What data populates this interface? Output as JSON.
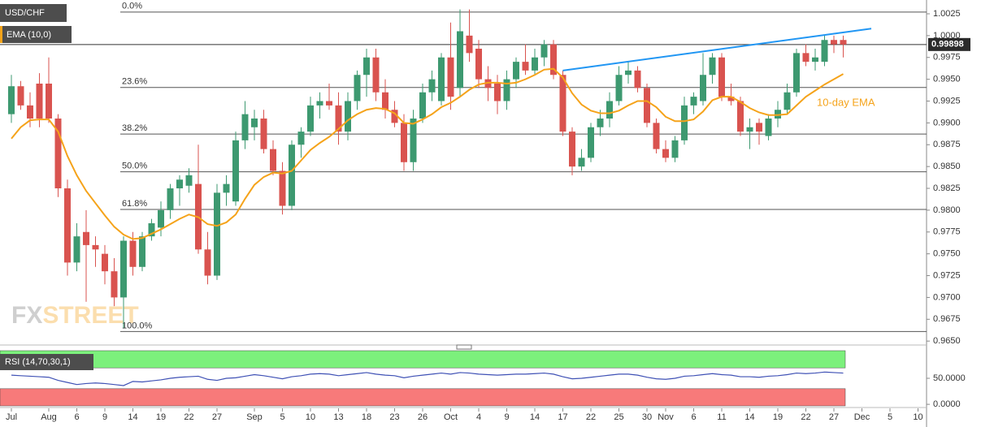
{
  "chart_data": {
    "type": "candlestick",
    "title": "USD/CHF",
    "categories": [
      "Jul",
      null,
      null,
      null,
      "Aug",
      null,
      null,
      "6",
      null,
      null,
      "9",
      null,
      null,
      "14",
      null,
      null,
      "19",
      null,
      null,
      "22",
      null,
      null,
      "27",
      null,
      null,
      null,
      "Sep",
      null,
      null,
      "5",
      null,
      null,
      "10",
      null,
      null,
      "13",
      null,
      null,
      "18",
      null,
      null,
      "23",
      null,
      null,
      "26",
      null,
      null,
      "Oct",
      null,
      null,
      "4",
      null,
      null,
      "9",
      null,
      null,
      "14",
      null,
      null,
      "17",
      null,
      null,
      "22",
      null,
      null,
      "25",
      null,
      null,
      "30",
      null,
      "Nov",
      null,
      null,
      "6",
      null,
      null,
      "11",
      null,
      null,
      "14",
      null,
      null,
      "19",
      null,
      null,
      "22",
      null,
      null,
      "27",
      null,
      null,
      "Dec",
      null,
      null,
      "5",
      null,
      null,
      "10"
    ],
    "series": [
      {
        "name": "USD/CHF",
        "up_color": "#3d9970",
        "down_color": "#d9534f",
        "open": [
          0.991,
          0.9942,
          0.992,
          0.9945,
          0.9945,
          0.9905,
          0.9825,
          0.974,
          0.9775,
          0.976,
          0.975,
          0.973,
          0.97,
          0.9765,
          0.9735,
          0.977,
          0.978,
          0.98,
          0.9825,
          0.9828,
          0.983,
          0.9755,
          0.9725,
          0.982,
          0.981,
          0.988,
          0.9895,
          0.9905,
          0.987,
          0.9845,
          0.9805,
          0.9875,
          0.989,
          0.992,
          0.9925,
          0.992,
          0.989,
          0.9925,
          0.9955,
          0.9975,
          0.9935,
          0.9915,
          0.99,
          0.9855,
          0.9905,
          0.9935,
          0.9925,
          0.9975,
          0.994,
          1.0,
          0.9985,
          0.995,
          0.9945,
          0.9925,
          0.995,
          0.997,
          0.996,
          0.9975,
          0.999,
          0.9955,
          0.989,
          0.985,
          0.986,
          0.9895,
          0.9905,
          0.9925,
          0.9955,
          0.996,
          0.994,
          0.99,
          0.987,
          0.986,
          0.988,
          0.992,
          0.9925,
          0.9955,
          0.9975,
          0.993,
          0.9925,
          0.989,
          0.99,
          0.9885,
          0.9905,
          0.9915,
          0.9935,
          0.998,
          0.997,
          0.997,
          0.9995,
          0.9995
        ],
        "high": [
          0.9955,
          0.9948,
          0.9935,
          0.9957,
          0.9975,
          0.991,
          0.9835,
          0.9785,
          0.98,
          0.977,
          0.976,
          0.9745,
          0.977,
          0.9775,
          0.9775,
          0.979,
          0.981,
          0.983,
          0.984,
          0.9848,
          0.9875,
          0.9775,
          0.983,
          0.984,
          0.989,
          0.9925,
          0.9915,
          0.9915,
          0.988,
          0.9855,
          0.988,
          0.9895,
          0.993,
          0.9935,
          0.9945,
          0.9935,
          0.9935,
          0.996,
          0.9985,
          0.9985,
          0.995,
          0.9925,
          0.991,
          0.9915,
          0.9945,
          0.996,
          0.998,
          1.0015,
          1.003,
          1.003,
          0.9995,
          0.9965,
          0.9955,
          0.996,
          0.9975,
          0.999,
          0.9985,
          0.9995,
          0.9995,
          0.996,
          0.9895,
          0.987,
          0.99,
          0.9915,
          0.9935,
          0.9965,
          0.997,
          0.9965,
          0.9945,
          0.9905,
          0.988,
          0.9885,
          0.993,
          0.9935,
          0.998,
          0.998,
          0.998,
          0.9945,
          0.993,
          0.9905,
          0.9905,
          0.991,
          0.9925,
          0.9945,
          0.9985,
          0.999,
          0.9985,
          1.0,
          1.0,
          1.0
        ],
        "low": [
          0.99,
          0.9915,
          0.9895,
          0.9895,
          0.99,
          0.9815,
          0.9725,
          0.973,
          0.9695,
          0.9735,
          0.9715,
          0.969,
          0.9665,
          0.9725,
          0.973,
          0.9765,
          0.977,
          0.979,
          0.9805,
          0.982,
          0.975,
          0.9715,
          0.972,
          0.9805,
          0.9805,
          0.987,
          0.988,
          0.9865,
          0.984,
          0.9795,
          0.98,
          0.986,
          0.9885,
          0.9905,
          0.9915,
          0.9875,
          0.988,
          0.9915,
          0.993,
          0.9925,
          0.9905,
          0.9895,
          0.9845,
          0.9845,
          0.99,
          0.9925,
          0.992,
          0.9915,
          0.993,
          0.997,
          0.994,
          0.9925,
          0.991,
          0.9915,
          0.994,
          0.9955,
          0.9955,
          0.9965,
          0.995,
          0.9885,
          0.984,
          0.9845,
          0.9855,
          0.9885,
          0.9895,
          0.992,
          0.9945,
          0.9935,
          0.9895,
          0.9865,
          0.9855,
          0.9855,
          0.9875,
          0.991,
          0.992,
          0.9945,
          0.9925,
          0.992,
          0.9885,
          0.987,
          0.9875,
          0.988,
          0.9895,
          0.991,
          0.993,
          0.9965,
          0.996,
          0.9965,
          0.998,
          0.9975
        ],
        "close": [
          0.9942,
          0.992,
          0.9905,
          0.9905,
          0.9905,
          0.9825,
          0.974,
          0.977,
          0.976,
          0.9755,
          0.973,
          0.97,
          0.9765,
          0.9735,
          0.977,
          0.9785,
          0.98,
          0.9825,
          0.9835,
          0.984,
          0.9755,
          0.9725,
          0.982,
          0.983,
          0.988,
          0.991,
          0.9905,
          0.987,
          0.9845,
          0.9805,
          0.9875,
          0.989,
          0.992,
          0.9925,
          0.992,
          0.989,
          0.9925,
          0.9955,
          0.9975,
          0.9935,
          0.9915,
          0.99,
          0.9855,
          0.9905,
          0.9935,
          0.995,
          0.9975,
          0.993,
          1.0005,
          0.998,
          0.995,
          0.994,
          0.9925,
          0.995,
          0.997,
          0.996,
          0.9975,
          0.999,
          0.9955,
          0.989,
          0.985,
          0.986,
          0.9895,
          0.9905,
          0.9925,
          0.9955,
          0.996,
          0.994,
          0.99,
          0.987,
          0.986,
          0.988,
          0.992,
          0.993,
          0.9955,
          0.9975,
          0.993,
          0.9925,
          0.989,
          0.9895,
          0.989,
          0.9905,
          0.9915,
          0.9935,
          0.998,
          0.997,
          0.9975,
          0.9995,
          0.999,
          0.99898
        ]
      }
    ],
    "ema": {
      "name": "EMA (10,0)",
      "color": "#f5a31a",
      "annotation": "10-day EMA",
      "values": [
        0.9882,
        0.9895,
        0.9903,
        0.9904,
        0.9904,
        0.989,
        0.9862,
        0.984,
        0.9822,
        0.9808,
        0.9794,
        0.9781,
        0.9772,
        0.9767,
        0.9768,
        0.9773,
        0.9778,
        0.9784,
        0.979,
        0.9795,
        0.9792,
        0.9784,
        0.9782,
        0.9786,
        0.9795,
        0.9813,
        0.9829,
        0.9838,
        0.9843,
        0.9842,
        0.9845,
        0.9857,
        0.9869,
        0.9877,
        0.9884,
        0.9893,
        0.9903,
        0.991,
        0.9915,
        0.9917,
        0.9916,
        0.9911,
        0.99,
        0.9899,
        0.9904,
        0.991,
        0.9918,
        0.9923,
        0.993,
        0.9938,
        0.9944,
        0.9946,
        0.9946,
        0.9945,
        0.9946,
        0.995,
        0.9955,
        0.9961,
        0.9962,
        0.9952,
        0.9934,
        0.9921,
        0.9914,
        0.9911,
        0.9911,
        0.9914,
        0.992,
        0.9925,
        0.9925,
        0.9918,
        0.9907,
        0.9902,
        0.9902,
        0.9904,
        0.9913,
        0.9926,
        0.993,
        0.993,
        0.9924,
        0.9917,
        0.9912,
        0.9909,
        0.9909,
        0.991,
        0.992,
        0.993,
        0.9937,
        0.9944,
        0.995,
        0.9956
      ]
    },
    "fibonacci": {
      "color": "#555555",
      "levels": [
        {
          "value": 1.0027,
          "label": "0.0%"
        },
        {
          "value": 0.99406,
          "label": "23.6%"
        },
        {
          "value": 0.98872,
          "label": "38.2%"
        },
        {
          "value": 0.9844,
          "label": "50.0%"
        },
        {
          "value": 0.98008,
          "label": "61.8%"
        },
        {
          "value": 0.9661,
          "label": "100.0%"
        }
      ]
    },
    "trendline": {
      "color": "#2196f3",
      "start": {
        "category_index": 59,
        "value": 0.996
      },
      "end": {
        "category_index": 92,
        "value": 1.0008
      }
    },
    "last_price": 0.99898,
    "ylim": [
      0.96483,
      1.00408
    ],
    "yticks": [
      {
        "value": 1.0025,
        "label": "1.0025"
      },
      {
        "value": 1.0,
        "label": "1.0000"
      },
      {
        "value": 0.9975,
        "label": "0.9975"
      },
      {
        "value": 0.995,
        "label": "0.9950"
      },
      {
        "value": 0.9925,
        "label": "0.9925"
      },
      {
        "value": 0.99,
        "label": "0.9900"
      },
      {
        "value": 0.9875,
        "label": "0.9875"
      },
      {
        "value": 0.985,
        "label": "0.9850"
      },
      {
        "value": 0.9825,
        "label": "0.9825"
      },
      {
        "value": 0.98,
        "label": "0.9800"
      },
      {
        "value": 0.9775,
        "label": "0.9775"
      },
      {
        "value": 0.975,
        "label": "0.9750"
      },
      {
        "value": 0.9725,
        "label": "0.9725"
      },
      {
        "value": 0.97,
        "label": "0.9700"
      },
      {
        "value": 0.9675,
        "label": "0.9675"
      },
      {
        "value": 0.965,
        "label": "0.9650"
      }
    ],
    "rsi": {
      "title": "RSI (14,70,30,1)",
      "color": "#3f51b5",
      "upper": 70,
      "lower": 30,
      "upper_color": "#7cf07c",
      "lower_color": "#f77a7a",
      "ylim": [
        -3,
        103
      ],
      "yticks": [
        {
          "value": 50,
          "label": "50.0000"
        },
        {
          "value": 0,
          "label": "0.0000"
        }
      ],
      "values": [
        56,
        55,
        54,
        53,
        52,
        46,
        42,
        38,
        40,
        41,
        40,
        38,
        36,
        44,
        43,
        45,
        47,
        50,
        52,
        53,
        54,
        48,
        46,
        50,
        51,
        54,
        57,
        55,
        52,
        49,
        53,
        55,
        58,
        59,
        58,
        55,
        57,
        59,
        61,
        58,
        56,
        55,
        51,
        54,
        56,
        58,
        60,
        58,
        61,
        60,
        58,
        57,
        56,
        57,
        58,
        58,
        59,
        60,
        58,
        53,
        49,
        50,
        52,
        54,
        56,
        58,
        58,
        56,
        52,
        49,
        48,
        50,
        54,
        55,
        57,
        59,
        57,
        56,
        53,
        53,
        52,
        54,
        55,
        57,
        60,
        59,
        60,
        62,
        61,
        60
      ]
    },
    "watermark": [
      "FX",
      "STREET"
    ]
  }
}
